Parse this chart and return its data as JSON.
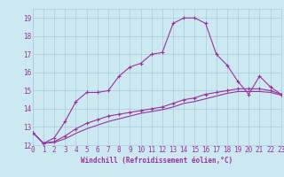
{
  "xlabel": "Windchill (Refroidissement éolien,°C)",
  "bg_color": "#cce8f0",
  "grid_color": "#aaccdd",
  "line_color": "#993399",
  "xmin": 0,
  "xmax": 23,
  "ymin": 12,
  "ymax": 19.5,
  "series1_x": [
    0,
    1,
    2,
    3,
    4,
    5,
    6,
    7,
    8,
    9,
    10,
    11,
    12,
    13,
    14,
    15,
    16,
    17,
    18,
    19,
    20,
    21,
    22,
    23
  ],
  "series1_y": [
    12.7,
    12.1,
    12.4,
    13.3,
    14.4,
    14.9,
    14.9,
    15.0,
    15.8,
    16.3,
    16.5,
    17.0,
    17.1,
    18.7,
    19.0,
    19.0,
    18.7,
    17.0,
    16.4,
    15.5,
    14.8,
    15.8,
    15.2,
    14.8
  ],
  "series2_x": [
    0,
    1,
    2,
    3,
    4,
    5,
    6,
    7,
    8,
    9,
    10,
    11,
    12,
    13,
    14,
    15,
    16,
    17,
    18,
    19,
    20,
    21,
    22,
    23
  ],
  "series2_y": [
    12.7,
    12.1,
    12.2,
    12.5,
    12.9,
    13.2,
    13.4,
    13.6,
    13.7,
    13.8,
    13.9,
    14.0,
    14.1,
    14.3,
    14.5,
    14.6,
    14.8,
    14.9,
    15.0,
    15.1,
    15.1,
    15.1,
    15.0,
    14.8
  ],
  "series3_x": [
    0,
    1,
    2,
    3,
    4,
    5,
    6,
    7,
    8,
    9,
    10,
    11,
    12,
    13,
    14,
    15,
    16,
    17,
    18,
    19,
    20,
    21,
    22,
    23
  ],
  "series3_y": [
    12.7,
    12.1,
    12.15,
    12.35,
    12.65,
    12.9,
    13.1,
    13.3,
    13.45,
    13.6,
    13.75,
    13.85,
    13.95,
    14.1,
    14.3,
    14.4,
    14.55,
    14.7,
    14.85,
    14.95,
    14.95,
    14.95,
    14.9,
    14.75
  ],
  "yticks": [
    12,
    13,
    14,
    15,
    16,
    17,
    18,
    19
  ],
  "xticks": [
    0,
    1,
    2,
    3,
    4,
    5,
    6,
    7,
    8,
    9,
    10,
    11,
    12,
    13,
    14,
    15,
    16,
    17,
    18,
    19,
    20,
    21,
    22,
    23
  ],
  "marker": "+",
  "markersize": 3.5,
  "linewidth": 0.8,
  "tick_fontsize": 5.5,
  "xlabel_fontsize": 5.5
}
